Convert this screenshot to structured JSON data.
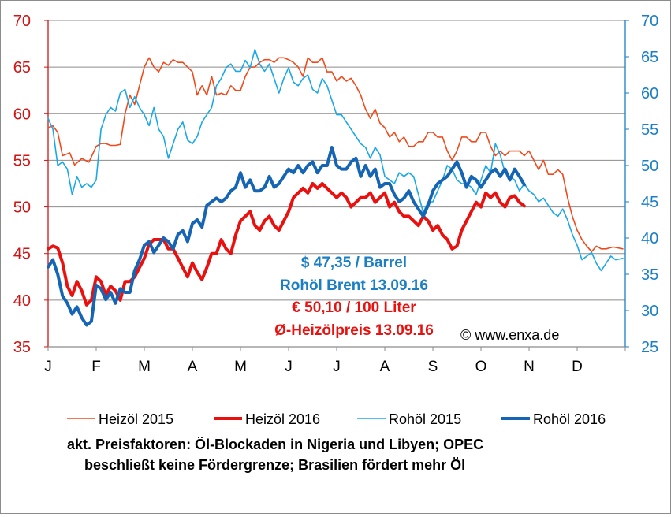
{
  "chart_data": {
    "type": "line",
    "title": "",
    "months": [
      "J",
      "F",
      "M",
      "A",
      "M",
      "J",
      "J",
      "A",
      "S",
      "O",
      "N",
      "D"
    ],
    "y_left": {
      "min": 35,
      "max": 70,
      "ticks": [
        "35",
        "40",
        "45",
        "50",
        "55",
        "60",
        "65",
        "70"
      ],
      "color": "#d11414"
    },
    "y_right": {
      "min": 25,
      "max": 70,
      "ticks": [
        "25",
        "30",
        "35",
        "40",
        "45",
        "50",
        "55",
        "60",
        "65",
        "70"
      ],
      "color": "#1b7fc4"
    },
    "grid": true,
    "legend_position": "bottom",
    "series": [
      {
        "name": "Heizöl 2015",
        "axis": "left",
        "color": "#f04a1c",
        "width": 1.6,
        "x": [
          0,
          0.1,
          0.2,
          0.3,
          0.45,
          0.55,
          0.7,
          0.85,
          1.0,
          1.1,
          1.2,
          1.3,
          1.4,
          1.5,
          1.6,
          1.7,
          1.8,
          1.9,
          2.0,
          2.1,
          2.2,
          2.3,
          2.4,
          2.5,
          2.6,
          2.7,
          2.8,
          2.9,
          3.0,
          3.1,
          3.2,
          3.3,
          3.4,
          3.5,
          3.6,
          3.7,
          3.8,
          3.9,
          4.0,
          4.1,
          4.2,
          4.3,
          4.4,
          4.5,
          4.6,
          4.7,
          4.8,
          4.9,
          5.0,
          5.1,
          5.2,
          5.3,
          5.4,
          5.5,
          5.6,
          5.7,
          5.8,
          5.9,
          6.0,
          6.1,
          6.2,
          6.3,
          6.4,
          6.5,
          6.6,
          6.7,
          6.8,
          6.9,
          7.0,
          7.1,
          7.2,
          7.3,
          7.4,
          7.5,
          7.6,
          7.7,
          7.8,
          7.9,
          8.0,
          8.1,
          8.2,
          8.3,
          8.4,
          8.5,
          8.6,
          8.7,
          8.8,
          8.9,
          9.0,
          9.1,
          9.2,
          9.3,
          9.4,
          9.5,
          9.6,
          9.7,
          9.8,
          9.9,
          10.0,
          10.1,
          10.2,
          10.3,
          10.4,
          10.5,
          10.6,
          10.7,
          10.8,
          10.9,
          11.0,
          11.1,
          11.2,
          11.3,
          11.4,
          11.5,
          11.6,
          11.75,
          11.95
        ],
        "y": [
          58.5,
          58.7,
          58.0,
          55.5,
          55.8,
          54.5,
          55.2,
          54.8,
          56.5,
          56.8,
          56.8,
          56.6,
          56.6,
          56.7,
          60.0,
          62.0,
          61.0,
          63.0,
          65.0,
          66.0,
          65.0,
          64.5,
          65.5,
          65.2,
          65.8,
          65.5,
          65.5,
          65.0,
          64.5,
          62.0,
          63.0,
          62.0,
          64.0,
          62.0,
          62.2,
          62.0,
          63.0,
          62.5,
          62.5,
          64.0,
          65.0,
          65.0,
          65.5,
          65.8,
          65.8,
          65.5,
          66.0,
          66.0,
          65.8,
          65.5,
          65.0,
          64.0,
          66.0,
          65.5,
          65.5,
          66.0,
          64.5,
          64.5,
          63.5,
          64.0,
          63.5,
          63.8,
          63.0,
          62.0,
          60.5,
          59.5,
          60.5,
          59.0,
          58.5,
          57.5,
          58.0,
          57.0,
          57.5,
          56.5,
          56.5,
          57.0,
          57.0,
          58.0,
          58.0,
          57.5,
          57.5,
          56.0,
          55.0,
          56.0,
          57.5,
          57.5,
          57.0,
          57.0,
          58.0,
          58.0,
          56.5,
          55.5,
          56.0,
          55.5,
          56.0,
          56.0,
          56.0,
          55.5,
          56.0,
          55.0,
          54.0,
          55.0,
          53.5,
          53.5,
          54.0,
          53.5,
          51.0,
          49.0,
          47.5,
          46.5,
          45.8,
          45.2,
          45.8,
          45.5,
          45.5,
          45.7,
          45.5
        ]
      },
      {
        "name": "Heizöl 2016",
        "axis": "left",
        "color": "#e8110f",
        "width": 4,
        "x": [
          0,
          0.1,
          0.2,
          0.3,
          0.4,
          0.5,
          0.6,
          0.7,
          0.8,
          0.9,
          1.0,
          1.1,
          1.2,
          1.3,
          1.4,
          1.5,
          1.6,
          1.7,
          1.8,
          1.9,
          2.0,
          2.1,
          2.2,
          2.3,
          2.4,
          2.5,
          2.6,
          2.7,
          2.8,
          2.9,
          3.0,
          3.1,
          3.2,
          3.3,
          3.4,
          3.5,
          3.6,
          3.7,
          3.8,
          3.9,
          4.0,
          4.1,
          4.2,
          4.3,
          4.4,
          4.5,
          4.6,
          4.7,
          4.8,
          4.9,
          5.0,
          5.1,
          5.2,
          5.3,
          5.4,
          5.5,
          5.6,
          5.7,
          5.8,
          5.9,
          6.0,
          6.1,
          6.2,
          6.3,
          6.4,
          6.5,
          6.6,
          6.7,
          6.8,
          6.9,
          7.0,
          7.1,
          7.2,
          7.3,
          7.4,
          7.5,
          7.6,
          7.7,
          7.8,
          7.9,
          8.0,
          8.1,
          8.2,
          8.3,
          8.4,
          8.5,
          8.6,
          8.7,
          8.8,
          8.9,
          9.0,
          9.1,
          9.2,
          9.3,
          9.4,
          9.5,
          9.6,
          9.7,
          9.8,
          9.9
        ],
        "y": [
          45.5,
          45.8,
          45.6,
          44.0,
          41.5,
          40.5,
          42.0,
          41.0,
          39.5,
          40.0,
          42.5,
          42.0,
          40.5,
          41.5,
          41.0,
          40.0,
          42.0,
          42.0,
          42.5,
          43.5,
          44.5,
          46.0,
          46.5,
          46.5,
          46.5,
          45.5,
          45.5,
          44.5,
          43.5,
          42.5,
          44.0,
          43.0,
          42.2,
          43.5,
          45.0,
          45.0,
          46.5,
          45.5,
          45.0,
          47.0,
          48.5,
          49.0,
          49.5,
          48.0,
          47.5,
          48.5,
          49.0,
          48.0,
          47.5,
          48.5,
          49.5,
          51.0,
          51.5,
          52.0,
          51.5,
          52.5,
          52.0,
          52.5,
          52.0,
          51.5,
          51.0,
          51.5,
          51.0,
          50.0,
          50.5,
          51.0,
          51.0,
          51.5,
          50.5,
          51.0,
          51.5,
          50.0,
          50.5,
          49.5,
          49.0,
          49.0,
          48.5,
          48.0,
          49.0,
          48.5,
          47.5,
          48.0,
          47.0,
          46.5,
          45.5,
          45.8,
          47.5,
          48.5,
          49.5,
          50.5,
          50.0,
          51.5,
          51.0,
          51.5,
          50.5,
          50.0,
          51.0,
          51.2,
          50.5,
          50.1
        ]
      },
      {
        "name": "Rohöl 2015",
        "axis": "right",
        "color": "#1ba8e6",
        "width": 1.6,
        "x": [
          0,
          0.1,
          0.2,
          0.3,
          0.4,
          0.5,
          0.6,
          0.7,
          0.8,
          0.9,
          1.0,
          1.1,
          1.2,
          1.3,
          1.4,
          1.5,
          1.6,
          1.7,
          1.8,
          1.9,
          2.0,
          2.1,
          2.2,
          2.3,
          2.4,
          2.5,
          2.6,
          2.7,
          2.8,
          2.9,
          3.0,
          3.1,
          3.2,
          3.3,
          3.4,
          3.5,
          3.6,
          3.7,
          3.8,
          3.9,
          4.0,
          4.1,
          4.2,
          4.3,
          4.4,
          4.5,
          4.6,
          4.7,
          4.8,
          4.9,
          5.0,
          5.1,
          5.2,
          5.3,
          5.4,
          5.5,
          5.6,
          5.7,
          5.8,
          5.9,
          6.0,
          6.1,
          6.2,
          6.3,
          6.4,
          6.5,
          6.6,
          6.7,
          6.8,
          6.9,
          7.0,
          7.1,
          7.2,
          7.3,
          7.4,
          7.5,
          7.6,
          7.7,
          7.8,
          7.9,
          8.0,
          8.1,
          8.2,
          8.3,
          8.4,
          8.5,
          8.6,
          8.7,
          8.8,
          8.9,
          9.0,
          9.1,
          9.2,
          9.3,
          9.4,
          9.5,
          9.6,
          9.7,
          9.8,
          9.9,
          10.0,
          10.1,
          10.2,
          10.3,
          10.4,
          10.5,
          10.6,
          10.7,
          10.8,
          10.9,
          11.0,
          11.1,
          11.2,
          11.3,
          11.4,
          11.5,
          11.6,
          11.7,
          11.8,
          11.95
        ],
        "y": [
          56.5,
          55.0,
          50.0,
          50.5,
          49.5,
          46.0,
          48.5,
          47.0,
          47.5,
          47.0,
          48.0,
          55.0,
          57.0,
          58.0,
          57.5,
          60.0,
          60.5,
          58.0,
          59.5,
          58.0,
          57.0,
          55.5,
          58.0,
          55.0,
          54.0,
          51.0,
          53.0,
          55.0,
          56.0,
          53.5,
          53.0,
          54.0,
          56.0,
          57.0,
          58.0,
          61.0,
          62.0,
          63.5,
          64.0,
          63.0,
          63.0,
          64.5,
          63.5,
          66.0,
          64.0,
          63.0,
          64.0,
          62.0,
          60.0,
          62.0,
          63.5,
          61.5,
          61.0,
          62.0,
          62.5,
          60.5,
          60.0,
          62.0,
          61.0,
          59.0,
          57.0,
          57.0,
          56.0,
          55.0,
          54.0,
          53.0,
          52.5,
          51.0,
          52.5,
          51.5,
          48.5,
          48.0,
          47.5,
          49.0,
          48.5,
          49.0,
          48.5,
          46.0,
          43.5,
          45.0,
          45.0,
          46.5,
          48.0,
          50.0,
          49.5,
          48.0,
          47.5,
          47.5,
          47.0,
          46.0,
          48.0,
          50.0,
          49.0,
          53.0,
          51.5,
          49.0,
          48.5,
          48.0,
          46.5,
          47.5,
          46.5,
          46.0,
          45.0,
          45.5,
          44.5,
          43.5,
          43.0,
          44.0,
          42.5,
          40.5,
          39.0,
          37.0,
          37.5,
          38.0,
          36.5,
          35.5,
          36.5,
          37.5,
          37.0,
          37.2
        ]
      },
      {
        "name": "Rohöl 2016",
        "axis": "right",
        "color": "#1565b4",
        "width": 4,
        "x": [
          0,
          0.1,
          0.2,
          0.3,
          0.4,
          0.5,
          0.6,
          0.7,
          0.8,
          0.9,
          1.0,
          1.1,
          1.2,
          1.3,
          1.4,
          1.5,
          1.6,
          1.7,
          1.8,
          1.9,
          2.0,
          2.1,
          2.2,
          2.3,
          2.4,
          2.5,
          2.6,
          2.7,
          2.8,
          2.9,
          3.0,
          3.1,
          3.2,
          3.3,
          3.4,
          3.5,
          3.6,
          3.7,
          3.8,
          3.9,
          4.0,
          4.1,
          4.2,
          4.3,
          4.4,
          4.5,
          4.6,
          4.7,
          4.8,
          4.9,
          5.0,
          5.1,
          5.2,
          5.3,
          5.4,
          5.5,
          5.6,
          5.7,
          5.8,
          5.9,
          6.0,
          6.1,
          6.2,
          6.3,
          6.4,
          6.5,
          6.6,
          6.7,
          6.8,
          6.9,
          7.0,
          7.1,
          7.2,
          7.3,
          7.4,
          7.5,
          7.6,
          7.7,
          7.8,
          7.9,
          8.0,
          8.1,
          8.2,
          8.3,
          8.4,
          8.5,
          8.6,
          8.7,
          8.8,
          8.9,
          9.0,
          9.1,
          9.2,
          9.3,
          9.4,
          9.5,
          9.6,
          9.7,
          9.8,
          9.9
        ],
        "y": [
          36.0,
          37.0,
          35.0,
          32.0,
          31.0,
          29.5,
          30.5,
          29.0,
          28.0,
          28.5,
          33.5,
          33.0,
          31.5,
          32.5,
          31.0,
          33.0,
          32.5,
          32.5,
          35.5,
          37.0,
          39.0,
          39.5,
          38.0,
          39.0,
          40.0,
          39.5,
          38.5,
          40.5,
          41.0,
          39.5,
          42.0,
          42.5,
          41.5,
          44.5,
          45.0,
          45.5,
          45.0,
          45.5,
          46.5,
          47.0,
          49.0,
          47.0,
          48.0,
          46.5,
          46.5,
          47.0,
          48.5,
          47.0,
          47.5,
          48.5,
          49.5,
          49.0,
          50.0,
          49.0,
          50.0,
          50.5,
          49.0,
          50.0,
          50.0,
          52.5,
          50.0,
          49.5,
          49.5,
          50.5,
          51.0,
          48.5,
          50.0,
          48.5,
          49.5,
          47.0,
          47.5,
          47.5,
          46.0,
          45.0,
          45.5,
          46.5,
          45.0,
          44.0,
          43.0,
          44.5,
          46.5,
          47.5,
          48.0,
          48.5,
          49.5,
          50.5,
          49.0,
          47.0,
          48.5,
          48.0,
          47.0,
          48.0,
          49.0,
          49.5,
          48.5,
          49.5,
          48.0,
          49.5,
          48.5,
          47.35
        ]
      }
    ],
    "annotations": [
      {
        "text": "$ 47,35 / Barrel",
        "color": "#1b7fc4"
      },
      {
        "text": "Rohöl Brent 13.09.16",
        "color": "#1b7fc4"
      },
      {
        "text": "€ 50,10 / 100 Liter",
        "color": "#e8110f"
      },
      {
        "text": "Ø-Heizölpreis 13.09.16",
        "color": "#e8110f"
      }
    ],
    "copyright": "© www.enxa.de",
    "footer": [
      "akt. Preisfaktoren: Öl-Blockaden in Nigeria und Libyen; OPEC",
      "beschließt keine Fördergrenze; Brasilien fördert mehr Öl"
    ]
  }
}
